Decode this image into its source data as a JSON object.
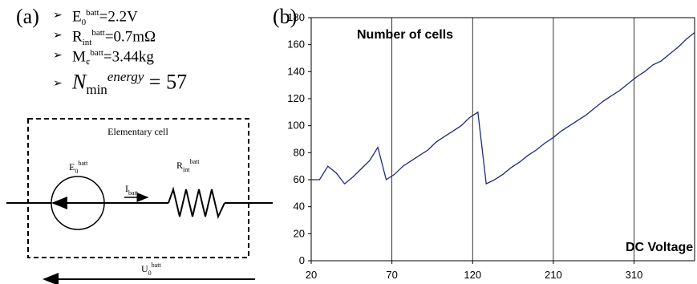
{
  "panel_a": {
    "label": "(a)",
    "params": [
      {
        "sym": "E",
        "sub": "0",
        "sup": "batt",
        "val": "=2.2V"
      },
      {
        "sym": "R",
        "sub": "int",
        "sup": "batt",
        "val": "=0.7mΩ"
      },
      {
        "sym": "M",
        "sub": "¢",
        "sup": "batt",
        "val": "=3.44kg"
      },
      {
        "sym": "N",
        "sub": "min",
        "sup": "energy",
        "val": "= 57"
      }
    ],
    "circuit": {
      "box_title": "Elementary cell",
      "source": {
        "sym": "E",
        "sub": "0",
        "sup": "batt"
      },
      "resistor": {
        "sym": "R",
        "sub": "int",
        "sup": "batt"
      },
      "current": {
        "sym": "I",
        "sub": "batt"
      },
      "voltage": {
        "sym": "U",
        "sub": "0",
        "sup": "batt"
      }
    }
  },
  "panel_b": {
    "label": "(b)"
  },
  "chart_data": {
    "type": "line",
    "title": "Number of cells",
    "xlabel": "DC Voltage",
    "ylabel": "",
    "x_tick_labels": [
      "20",
      "70",
      "120",
      "210",
      "310"
    ],
    "y_ticks": [
      0,
      20,
      40,
      60,
      80,
      100,
      120,
      140,
      160,
      180
    ],
    "ylim": [
      0,
      180
    ],
    "grid": "vertical",
    "line_color": "#1f2a7a",
    "series": [
      {
        "values": [
          60,
          60,
          70,
          65,
          57,
          62,
          68,
          74,
          84,
          60,
          64,
          70,
          74,
          78,
          82,
          88,
          92,
          96,
          100,
          106,
          110,
          57,
          60,
          64,
          69,
          73,
          78,
          82,
          87,
          91,
          96,
          100,
          104,
          108,
          113,
          118,
          122,
          126,
          131,
          136,
          140,
          145,
          148,
          153,
          158,
          164,
          169
        ]
      }
    ]
  }
}
